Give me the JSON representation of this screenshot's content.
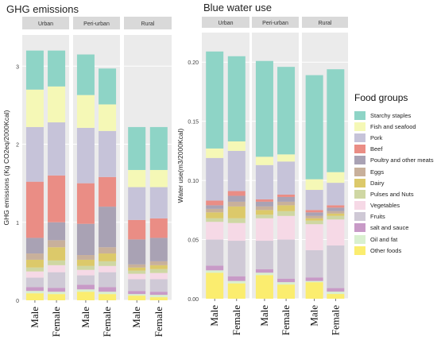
{
  "titles": {
    "left": "GHG emissions",
    "right": "Blue water use"
  },
  "legend_title": "Food groups",
  "colors": {
    "Starchy staples": "#8ed4c6",
    "Fish and seafood": "#f5f8b6",
    "Pork": "#c6c3d9",
    "Beef": "#ea8d85",
    "Poultry and other meats": "#a9a2b4",
    "Eggs": "#c8b09b",
    "Dairy": "#dcc96a",
    "Pulses and Nuts": "#cfd7a3",
    "Vegetables": "#f6d9e6",
    "Fruits": "#cfc9d6",
    "salt and sauce": "#c89ac7",
    "Oil and fat": "#d9f0cf",
    "Other foods": "#fbed6f"
  },
  "chart_data": [
    {
      "type": "bar",
      "stacked": true,
      "facets": [
        "Urban",
        "Peri-urban",
        "Rural"
      ],
      "categories": [
        "Male",
        "Female"
      ],
      "ylabel": "GHG emissions (Kg CO2eq/2000Kcal)",
      "ylim": [
        0,
        3.4
      ],
      "yticks": [
        "0",
        "1",
        "2",
        "3"
      ],
      "ytick_values": [
        0,
        1,
        2,
        3
      ],
      "stack_order": [
        "Other foods",
        "Oil and fat",
        "salt and sauce",
        "Fruits",
        "Vegetables",
        "Pulses and Nuts",
        "Dairy",
        "Eggs",
        "Poultry and other meats",
        "Beef",
        "Pork",
        "Fish and seafood",
        "Starchy staples"
      ],
      "series": [
        {
          "name": "Starchy staples",
          "values": [
            [
              0.5,
              0.46
            ],
            [
              0.52,
              0.46
            ],
            [
              0.55,
              0.55
            ]
          ]
        },
        {
          "name": "Fish and seafood",
          "values": [
            [
              0.48,
              0.46
            ],
            [
              0.42,
              0.34
            ],
            [
              0.22,
              0.22
            ]
          ]
        },
        {
          "name": "Pork",
          "values": [
            [
              0.7,
              0.68
            ],
            [
              0.71,
              0.59
            ],
            [
              0.42,
              0.4
            ]
          ]
        },
        {
          "name": "Beef",
          "values": [
            [
              0.72,
              0.6
            ],
            [
              0.52,
              0.38
            ],
            [
              0.25,
              0.25
            ]
          ]
        },
        {
          "name": "Poultry and other meats",
          "values": [
            [
              0.2,
              0.23
            ],
            [
              0.4,
              0.52
            ],
            [
              0.32,
              0.3
            ]
          ]
        },
        {
          "name": "Eggs",
          "values": [
            [
              0.08,
              0.09
            ],
            [
              0.06,
              0.08
            ],
            [
              0.04,
              0.05
            ]
          ]
        },
        {
          "name": "Dairy",
          "values": [
            [
              0.1,
              0.17
            ],
            [
              0.08,
              0.1
            ],
            [
              0.04,
              0.05
            ]
          ]
        },
        {
          "name": "Pulses and Nuts",
          "values": [
            [
              0.05,
              0.06
            ],
            [
              0.05,
              0.06
            ],
            [
              0.04,
              0.05
            ]
          ]
        },
        {
          "name": "Vegetables",
          "values": [
            [
              0.08,
              0.09
            ],
            [
              0.07,
              0.08
            ],
            [
              0.07,
              0.08
            ]
          ]
        },
        {
          "name": "Fruits",
          "values": [
            [
              0.12,
              0.2
            ],
            [
              0.12,
              0.19
            ],
            [
              0.15,
              0.16
            ]
          ]
        },
        {
          "name": "salt and sauce",
          "values": [
            [
              0.05,
              0.05
            ],
            [
              0.06,
              0.06
            ],
            [
              0.04,
              0.04
            ]
          ]
        },
        {
          "name": "Oil and fat",
          "values": [
            [
              0.03,
              0.03
            ],
            [
              0.03,
              0.03
            ],
            [
              0.02,
              0.03
            ]
          ]
        },
        {
          "name": "Other foods",
          "values": [
            [
              0.09,
              0.08
            ],
            [
              0.11,
              0.08
            ],
            [
              0.06,
              0.04
            ]
          ]
        }
      ]
    },
    {
      "type": "bar",
      "stacked": true,
      "facets": [
        "Urban",
        "Peri-urban",
        "Rural"
      ],
      "categories": [
        "Male",
        "Female"
      ],
      "ylabel": "Water use(m3/2000Kcal)",
      "ylim": [
        0,
        0.225
      ],
      "yticks": [
        "0.00",
        "0.05",
        "0.10",
        "0.15",
        "0.20"
      ],
      "ytick_values": [
        0,
        0.05,
        0.1,
        0.15,
        0.2
      ],
      "stack_order": [
        "Other foods",
        "Oil and fat",
        "salt and sauce",
        "Fruits",
        "Vegetables",
        "Pulses and Nuts",
        "Dairy",
        "Eggs",
        "Poultry and other meats",
        "Beef",
        "Pork",
        "Fish and seafood",
        "Starchy staples"
      ],
      "series": [
        {
          "name": "Starchy staples",
          "values": [
            [
              0.082,
              0.072
            ],
            [
              0.081,
              0.074
            ],
            [
              0.088,
              0.087
            ]
          ]
        },
        {
          "name": "Fish and seafood",
          "values": [
            [
              0.008,
              0.008
            ],
            [
              0.007,
              0.006
            ],
            [
              0.009,
              0.009
            ]
          ]
        },
        {
          "name": "Pork",
          "values": [
            [
              0.036,
              0.034
            ],
            [
              0.029,
              0.028
            ],
            [
              0.017,
              0.019
            ]
          ]
        },
        {
          "name": "Beef",
          "values": [
            [
              0.004,
              0.004
            ],
            [
              0.002,
              0.002
            ],
            [
              0.002,
              0.002
            ]
          ]
        },
        {
          "name": "Poultry and other meats",
          "values": [
            [
              0.003,
              0.005
            ],
            [
              0.004,
              0.004
            ],
            [
              0.003,
              0.003
            ]
          ]
        },
        {
          "name": "Eggs",
          "values": [
            [
              0.003,
              0.004
            ],
            [
              0.003,
              0.003
            ],
            [
              0.002,
              0.002
            ]
          ]
        },
        {
          "name": "Dairy",
          "values": [
            [
              0.005,
              0.01
            ],
            [
              0.004,
              0.005
            ],
            [
              0.002,
              0.002
            ]
          ]
        },
        {
          "name": "Pulses and Nuts",
          "values": [
            [
              0.003,
              0.004
            ],
            [
              0.003,
              0.004
            ],
            [
              0.003,
              0.003
            ]
          ]
        },
        {
          "name": "Vegetables",
          "values": [
            [
              0.015,
              0.015
            ],
            [
              0.019,
              0.02
            ],
            [
              0.022,
              0.022
            ]
          ]
        },
        {
          "name": "Fruits",
          "values": [
            [
              0.022,
              0.03
            ],
            [
              0.024,
              0.033
            ],
            [
              0.023,
              0.036
            ]
          ]
        },
        {
          "name": "salt and sauce",
          "values": [
            [
              0.004,
              0.004
            ],
            [
              0.003,
              0.003
            ],
            [
              0.003,
              0.003
            ]
          ]
        },
        {
          "name": "Oil and fat",
          "values": [
            [
              0.002,
              0.002
            ],
            [
              0.002,
              0.002
            ],
            [
              0.001,
              0.002
            ]
          ]
        },
        {
          "name": "Other foods",
          "values": [
            [
              0.022,
              0.013
            ],
            [
              0.02,
              0.012
            ],
            [
              0.014,
              0.004
            ]
          ]
        }
      ]
    }
  ]
}
